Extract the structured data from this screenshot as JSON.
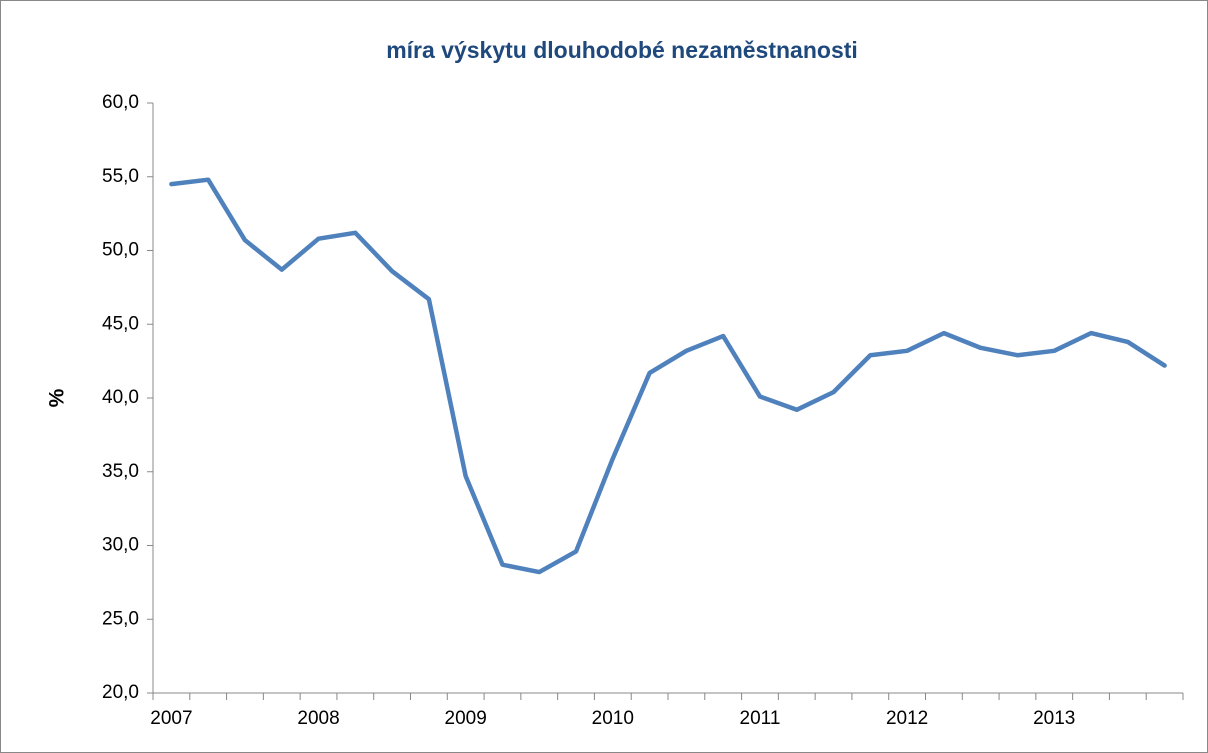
{
  "chart_data": {
    "type": "line",
    "title": "míra výskytu dlouhodobé nezaměstnanosti",
    "y_label": "%",
    "categories": [
      "2007",
      null,
      null,
      null,
      "2008",
      null,
      null,
      null,
      "2009",
      null,
      null,
      null,
      "2010",
      null,
      null,
      null,
      "2011",
      null,
      null,
      null,
      "2012",
      null,
      null,
      null,
      "2013",
      null,
      null,
      null
    ],
    "values": [
      54.5,
      54.8,
      50.7,
      48.7,
      50.8,
      51.2,
      48.6,
      46.7,
      34.7,
      28.7,
      28.2,
      29.6,
      35.9,
      41.7,
      43.2,
      44.2,
      40.1,
      39.2,
      40.4,
      42.9,
      43.2,
      44.4,
      43.4,
      42.9,
      43.2,
      44.4,
      43.8,
      42.2
    ],
    "color": "#4f81bd",
    "ylim": [
      20,
      60
    ],
    "yticks": [
      {
        "value": 20,
        "label": "20,0"
      },
      {
        "value": 25,
        "label": "25,0"
      },
      {
        "value": 30,
        "label": "30,0"
      },
      {
        "value": 35,
        "label": "35,0"
      },
      {
        "value": 40,
        "label": "40,0"
      },
      {
        "value": 45,
        "label": "45,0"
      },
      {
        "value": 50,
        "label": "50,0"
      },
      {
        "value": 55,
        "label": "55,0"
      },
      {
        "value": 60,
        "label": "60,0"
      }
    ],
    "grid": false
  }
}
